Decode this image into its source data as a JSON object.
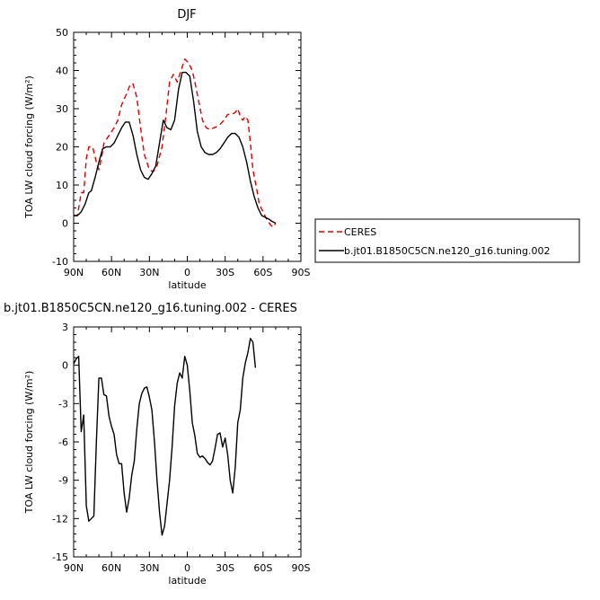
{
  "chart_data": [
    {
      "type": "line",
      "title": "DJF",
      "xlabel": "latitude",
      "ylabel": "TOA LW cloud forcing (W/m²)",
      "xlim": [
        90,
        -90
      ],
      "ylim": [
        -10,
        50
      ],
      "xticks": [
        {
          "value": 90,
          "label": "90N"
        },
        {
          "value": 60,
          "label": "60N"
        },
        {
          "value": 30,
          "label": "30N"
        },
        {
          "value": 0,
          "label": "0"
        },
        {
          "value": -30,
          "label": "30S"
        },
        {
          "value": -60,
          "label": "60S"
        },
        {
          "value": -90,
          "label": "90S"
        }
      ],
      "yticks": [
        -10,
        0,
        10,
        20,
        30,
        40,
        50
      ],
      "legend_position": "right",
      "series": [
        {
          "name": "CERES",
          "color": "#dd0000",
          "dash": "dashed",
          "points": [
            [
              90,
              2
            ],
            [
              87,
              2
            ],
            [
              84,
              8
            ],
            [
              82,
              8
            ],
            [
              80,
              17
            ],
            [
              78,
              20
            ],
            [
              75,
              20
            ],
            [
              72,
              16
            ],
            [
              70,
              14
            ],
            [
              68,
              17
            ],
            [
              66,
              21
            ],
            [
              62,
              23
            ],
            [
              58,
              25
            ],
            [
              55,
              27
            ],
            [
              52,
              31
            ],
            [
              48,
              34
            ],
            [
              45,
              36.5
            ],
            [
              43,
              36.5
            ],
            [
              40,
              33
            ],
            [
              37,
              25
            ],
            [
              34,
              18
            ],
            [
              30,
              14
            ],
            [
              27,
              13.5
            ],
            [
              24,
              15
            ],
            [
              20,
              20
            ],
            [
              17,
              28
            ],
            [
              14,
              37
            ],
            [
              11,
              39
            ],
            [
              8,
              37
            ],
            [
              5,
              40
            ],
            [
              2,
              43
            ],
            [
              -1,
              42
            ],
            [
              -4,
              40
            ],
            [
              -6,
              37
            ],
            [
              -9,
              32
            ],
            [
              -12,
              27
            ],
            [
              -15,
              25
            ],
            [
              -18,
              24.5
            ],
            [
              -21,
              25
            ],
            [
              -25,
              25.5
            ],
            [
              -29,
              27
            ],
            [
              -32,
              28.5
            ],
            [
              -35,
              28.5
            ],
            [
              -38,
              29
            ],
            [
              -40,
              30
            ],
            [
              -42,
              28
            ],
            [
              -44,
              27
            ],
            [
              -46,
              28
            ],
            [
              -48,
              27
            ],
            [
              -50,
              21
            ],
            [
              -52,
              14
            ],
            [
              -55,
              9
            ],
            [
              -57,
              5
            ],
            [
              -60,
              3
            ],
            [
              -63,
              1
            ],
            [
              -66,
              -0.5
            ],
            [
              -68,
              -1
            ],
            [
              -70,
              0
            ]
          ]
        },
        {
          "name": "b.jt01.B1850C5CN.ne120_g16.tuning.002",
          "color": "#000000",
          "dash": "solid",
          "points": [
            [
              90,
              2
            ],
            [
              87,
              2
            ],
            [
              84,
              3
            ],
            [
              81,
              5
            ],
            [
              78,
              8
            ],
            [
              76,
              8.5
            ],
            [
              73,
              12
            ],
            [
              70,
              16
            ],
            [
              67,
              19.5
            ],
            [
              64,
              20
            ],
            [
              61,
              20
            ],
            [
              58,
              21
            ],
            [
              55,
              23
            ],
            [
              52,
              25
            ],
            [
              49,
              26.5
            ],
            [
              46,
              26.5
            ],
            [
              43,
              23
            ],
            [
              40,
              18
            ],
            [
              37,
              14
            ],
            [
              34,
              12
            ],
            [
              31,
              11.5
            ],
            [
              28,
              13
            ],
            [
              25,
              15
            ],
            [
              22,
              21
            ],
            [
              19,
              27
            ],
            [
              16,
              25
            ],
            [
              13,
              24.5
            ],
            [
              10,
              27
            ],
            [
              7,
              35
            ],
            [
              4,
              39.5
            ],
            [
              1,
              39.5
            ],
            [
              -2,
              38.5
            ],
            [
              -5,
              32
            ],
            [
              -8,
              24
            ],
            [
              -11,
              20
            ],
            [
              -14,
              18.5
            ],
            [
              -17,
              18
            ],
            [
              -20,
              18
            ],
            [
              -23,
              18.5
            ],
            [
              -26,
              19.5
            ],
            [
              -29,
              21
            ],
            [
              -32,
              22.5
            ],
            [
              -35,
              23.5
            ],
            [
              -38,
              23.5
            ],
            [
              -41,
              22.5
            ],
            [
              -44,
              20
            ],
            [
              -47,
              16
            ],
            [
              -50,
              11
            ],
            [
              -53,
              7
            ],
            [
              -56,
              4
            ],
            [
              -59,
              2
            ],
            [
              -62,
              1.5
            ],
            [
              -65,
              1
            ],
            [
              -67,
              0.5
            ],
            [
              -70,
              0
            ]
          ]
        }
      ]
    },
    {
      "type": "line",
      "title": "b.jt01.B1850C5CN.ne120_g16.tuning.002 - CERES",
      "xlabel": "latitude",
      "ylabel": "TOA LW cloud forcing (W/m²)",
      "xlim": [
        90,
        -90
      ],
      "ylim": [
        -15,
        3
      ],
      "xticks": [
        {
          "value": 90,
          "label": "90N"
        },
        {
          "value": 60,
          "label": "60N"
        },
        {
          "value": 30,
          "label": "30N"
        },
        {
          "value": 0,
          "label": "0"
        },
        {
          "value": -30,
          "label": "30S"
        },
        {
          "value": -60,
          "label": "60S"
        },
        {
          "value": -90,
          "label": "90S"
        }
      ],
      "yticks": [
        -15,
        -12,
        -9,
        -6,
        -3,
        0,
        3
      ],
      "series": [
        {
          "color": "#000000",
          "dash": "solid",
          "points": [
            [
              90,
              0.1
            ],
            [
              88,
              0.5
            ],
            [
              86,
              0.7
            ],
            [
              84,
              -5.2
            ],
            [
              82,
              -3.9
            ],
            [
              80,
              -11
            ],
            [
              78,
              -12.2
            ],
            [
              76,
              -12
            ],
            [
              74,
              -11.8
            ],
            [
              72,
              -6
            ],
            [
              70,
              -1
            ],
            [
              68,
              -1
            ],
            [
              66,
              -2.3
            ],
            [
              64,
              -2.4
            ],
            [
              62,
              -4
            ],
            [
              60,
              -4.8
            ],
            [
              58,
              -5.4
            ],
            [
              56,
              -7
            ],
            [
              54,
              -7.7
            ],
            [
              52,
              -7.7
            ],
            [
              50,
              -10
            ],
            [
              48,
              -11.5
            ],
            [
              46,
              -10.4
            ],
            [
              44,
              -8.6
            ],
            [
              42,
              -7.5
            ],
            [
              40,
              -5
            ],
            [
              38,
              -3
            ],
            [
              36,
              -2.2
            ],
            [
              34,
              -1.8
            ],
            [
              32,
              -1.7
            ],
            [
              30,
              -2.5
            ],
            [
              28,
              -3.5
            ],
            [
              26,
              -6
            ],
            [
              24,
              -9
            ],
            [
              22,
              -11.5
            ],
            [
              20,
              -13.3
            ],
            [
              18,
              -12.6
            ],
            [
              16,
              -10.8
            ],
            [
              14,
              -9
            ],
            [
              12,
              -6.4
            ],
            [
              10,
              -3.2
            ],
            [
              8,
              -1.4
            ],
            [
              6,
              -0.6
            ],
            [
              4,
              -1
            ],
            [
              2,
              0.7
            ],
            [
              0,
              0
            ],
            [
              -2,
              -2
            ],
            [
              -4,
              -4.5
            ],
            [
              -6,
              -5.5
            ],
            [
              -8,
              -6.9
            ],
            [
              -10,
              -7.2
            ],
            [
              -12,
              -7.1
            ],
            [
              -14,
              -7.3
            ],
            [
              -16,
              -7.6
            ],
            [
              -18,
              -7.8
            ],
            [
              -20,
              -7.5
            ],
            [
              -22,
              -6.5
            ],
            [
              -24,
              -5.4
            ],
            [
              -26,
              -5.3
            ],
            [
              -28,
              -6.4
            ],
            [
              -30,
              -5.7
            ],
            [
              -32,
              -7
            ],
            [
              -34,
              -9
            ],
            [
              -36,
              -10
            ],
            [
              -38,
              -8
            ],
            [
              -40,
              -4.5
            ],
            [
              -42,
              -3.5
            ],
            [
              -44,
              -1
            ],
            [
              -46,
              0.2
            ],
            [
              -48,
              1
            ],
            [
              -50,
              2.1
            ],
            [
              -52,
              1.8
            ],
            [
              -54,
              -0.2
            ]
          ]
        }
      ]
    }
  ]
}
